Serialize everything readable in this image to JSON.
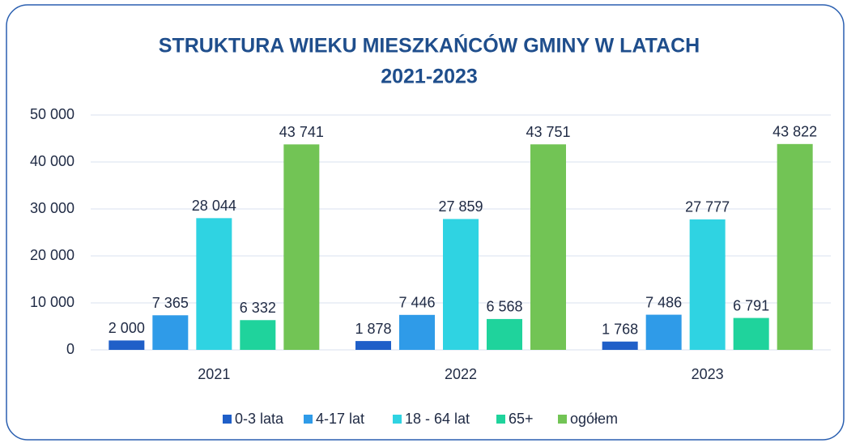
{
  "chart_data": {
    "type": "bar",
    "title": [
      "STRUKTURA WIEKU MIESZKAŃCÓW GMINY W LATACH",
      "2021-2023"
    ],
    "categories": [
      "2021",
      "2022",
      "2023"
    ],
    "series": [
      {
        "name": "0-3 lata",
        "color": "#1f5fc8",
        "values": [
          2000,
          1878,
          1768
        ],
        "value_labels": [
          "2 000",
          "1 878",
          "1 768"
        ]
      },
      {
        "name": "4-17 lat",
        "color": "#2f9be8",
        "values": [
          7365,
          7446,
          7486
        ],
        "value_labels": [
          "7 365",
          "7 446",
          "7 486"
        ]
      },
      {
        "name": "18 - 64 lat",
        "color": "#2fd3e2",
        "values": [
          28044,
          27859,
          27777
        ],
        "value_labels": [
          "28 044",
          "27 859",
          "27 777"
        ]
      },
      {
        "name": "65+",
        "color": "#1fd39c",
        "values": [
          6332,
          6568,
          6791
        ],
        "value_labels": [
          "6 332",
          "6 568",
          "6 791"
        ]
      },
      {
        "name": "ogółem",
        "color": "#72c455",
        "values": [
          43741,
          43751,
          43822
        ],
        "value_labels": [
          "43 741",
          "43 751",
          "43 822"
        ]
      }
    ],
    "ylim": [
      0,
      50000
    ],
    "yticks": [
      0,
      {
        "value": 10000,
        "label": "10 000"
      },
      {
        "value": 20000,
        "label": "20 000"
      },
      {
        "value": 30000,
        "label": "30 000"
      },
      {
        "value": 40000,
        "label": "40 000"
      },
      {
        "value": 50000,
        "label": "50 000"
      }
    ],
    "grid": true,
    "legend": "bottom"
  }
}
